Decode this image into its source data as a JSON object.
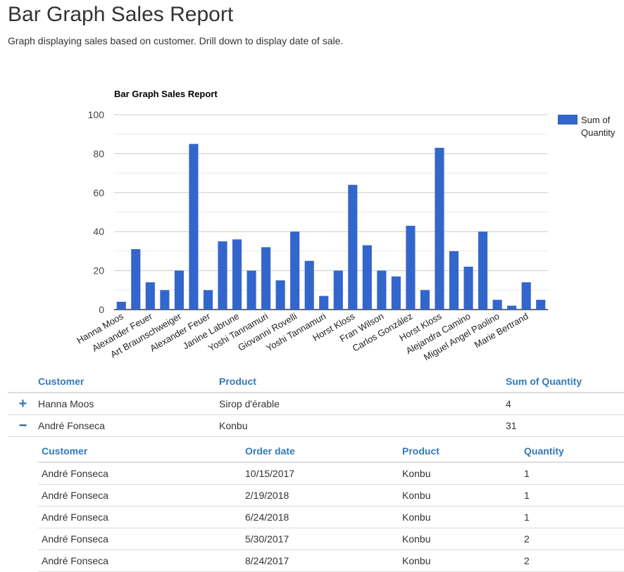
{
  "page": {
    "title": "Bar Graph Sales Report",
    "subtitle": "Graph displaying sales based on customer. Drill down to display date of sale."
  },
  "chart_data": {
    "type": "bar",
    "title": "Bar Graph Sales Report",
    "legend": {
      "label_line1": "Sum of",
      "label_line2": "Quantity",
      "placement": "right"
    },
    "series_name": "Sum of Quantity",
    "color": "#3366cc",
    "ylim": [
      0,
      100
    ],
    "yticks": [
      "0",
      "20",
      "40",
      "60",
      "80",
      "100"
    ],
    "grid": true,
    "categories": [
      "Hanna Moos",
      "",
      "Alexander Feuer",
      "",
      "Art Braunschweiger",
      "",
      "Alexander Feuer",
      "",
      "Janine Labrune",
      "",
      "Yoshi Tannamuri",
      "",
      "Giovanni Rovelli",
      "",
      "Yoshi Tannamuri",
      "",
      "Horst Kloss",
      "",
      "Fran Wilson",
      "",
      "Carlos González",
      "",
      "Horst Kloss",
      "",
      "Alejandra Camino",
      "",
      "Miguel Angel Paolino",
      "",
      "Marie Bertrand",
      ""
    ],
    "values": [
      4,
      31,
      14,
      10,
      20,
      85,
      10,
      35,
      36,
      20,
      32,
      15,
      40,
      25,
      7,
      20,
      64,
      33,
      20,
      17,
      43,
      10,
      83,
      30,
      22,
      40,
      5,
      2,
      14,
      5
    ]
  },
  "table": {
    "headers": [
      "Customer",
      "Product",
      "Sum of Quantity"
    ],
    "rows": [
      {
        "toggle": "+",
        "customer": "Hanna Moos",
        "product": "Sirop d'érable",
        "qty": "4"
      },
      {
        "toggle": "−",
        "customer": "André Fonseca",
        "product": "Konbu",
        "qty": "31"
      }
    ],
    "detail": {
      "headers": [
        "Customer",
        "Order date",
        "Product",
        "Quantity"
      ],
      "rows": [
        [
          "André Fonseca",
          "10/15/2017",
          "Konbu",
          "1"
        ],
        [
          "André Fonseca",
          "2/19/2018",
          "Konbu",
          "1"
        ],
        [
          "André Fonseca",
          "6/24/2018",
          "Konbu",
          "1"
        ],
        [
          "André Fonseca",
          "5/30/2017",
          "Konbu",
          "2"
        ],
        [
          "André Fonseca",
          "8/24/2017",
          "Konbu",
          "2"
        ]
      ]
    }
  }
}
